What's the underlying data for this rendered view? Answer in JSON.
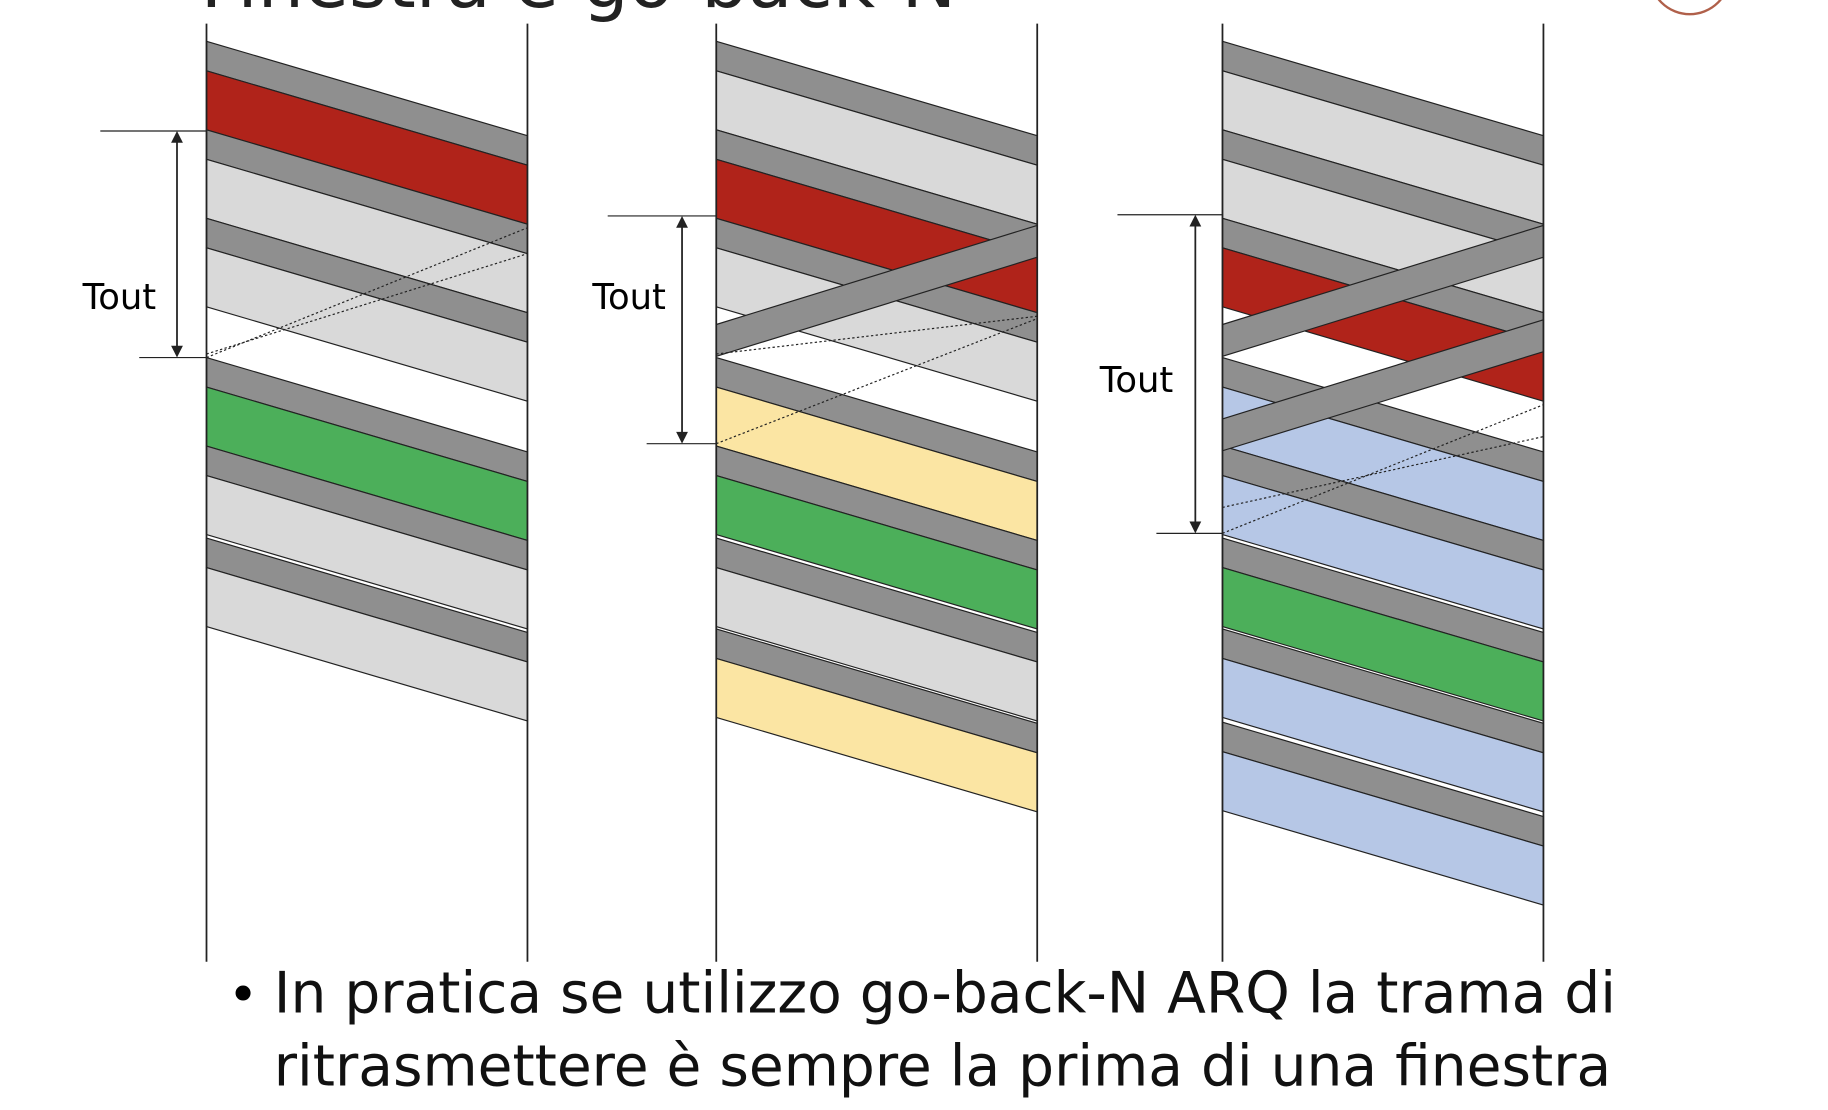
{
  "header": {
    "title": "Finestra e go-back-N"
  },
  "diagrams": [
    {
      "timeout_label": "Tout"
    },
    {
      "timeout_label": "Tout"
    },
    {
      "timeout_label": "Tout"
    }
  ],
  "bullets": [
    {
      "lines": [
        "In pratica se utilizzo go-back-N ARQ la trama di",
        "ritrasmettere è sempre la prima di una finestra"
      ]
    }
  ]
}
